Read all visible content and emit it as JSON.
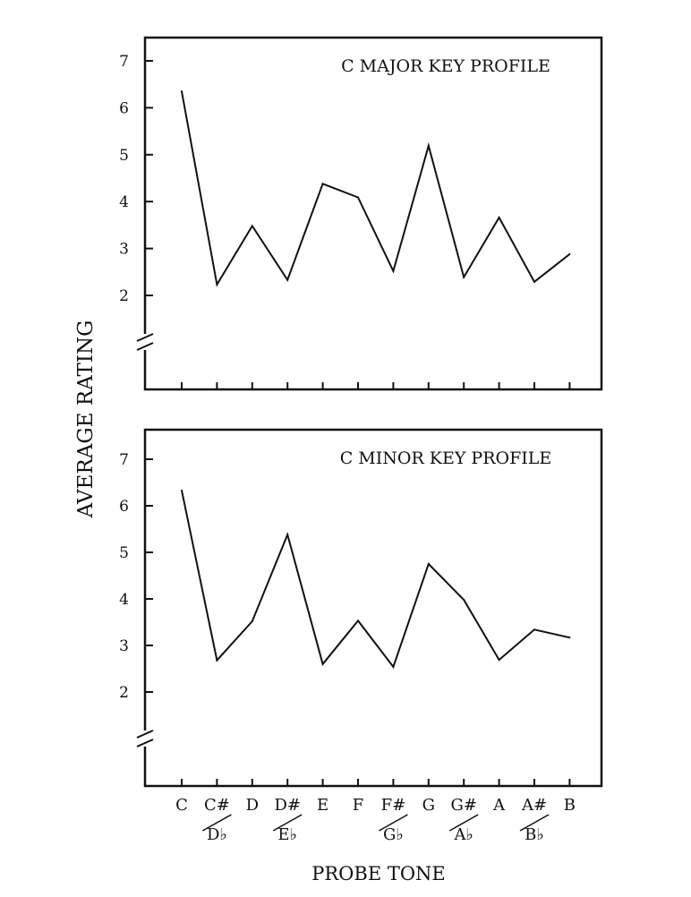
{
  "ylabel": "AVERAGE RATING",
  "xlabel": "PROBE TONE",
  "x_tick_labels": [
    {
      "top": "C"
    },
    {
      "top": "C#",
      "bottom": "D♭"
    },
    {
      "top": "D"
    },
    {
      "top": "D#",
      "bottom": "E♭"
    },
    {
      "top": "E"
    },
    {
      "top": "F"
    },
    {
      "top": "F#",
      "bottom": "G♭"
    },
    {
      "top": "G"
    },
    {
      "top": "G#",
      "bottom": "A♭"
    },
    {
      "top": "A"
    },
    {
      "top": "A#",
      "bottom": "B♭"
    },
    {
      "top": "B"
    }
  ],
  "chart_data": [
    {
      "type": "line",
      "title": "C MAJOR KEY PROFILE",
      "categories": [
        "C",
        "C#/D♭",
        "D",
        "D#/E♭",
        "E",
        "F",
        "F#/G♭",
        "G",
        "G#/A♭",
        "A",
        "A#/B♭",
        "B"
      ],
      "values": [
        6.35,
        2.23,
        3.48,
        2.33,
        4.38,
        4.09,
        2.52,
        5.19,
        2.39,
        3.66,
        2.29,
        2.88
      ],
      "ylim": [
        1,
        7.5
      ],
      "yticks": [
        2,
        3,
        4,
        5,
        6,
        7
      ],
      "axis_break": true,
      "grid": false
    },
    {
      "type": "line",
      "title": "C MINOR KEY PROFILE",
      "categories": [
        "C",
        "C#/D♭",
        "D",
        "D#/E♭",
        "E",
        "F",
        "F#/G♭",
        "G",
        "G#/A♭",
        "A",
        "A#/B♭",
        "B"
      ],
      "values": [
        6.33,
        2.68,
        3.52,
        5.38,
        2.6,
        3.53,
        2.54,
        4.75,
        3.98,
        2.69,
        3.34,
        3.17
      ],
      "ylim": [
        1,
        7.5
      ],
      "yticks": [
        2,
        3,
        4,
        5,
        6,
        7
      ],
      "axis_break": true,
      "grid": false
    }
  ]
}
